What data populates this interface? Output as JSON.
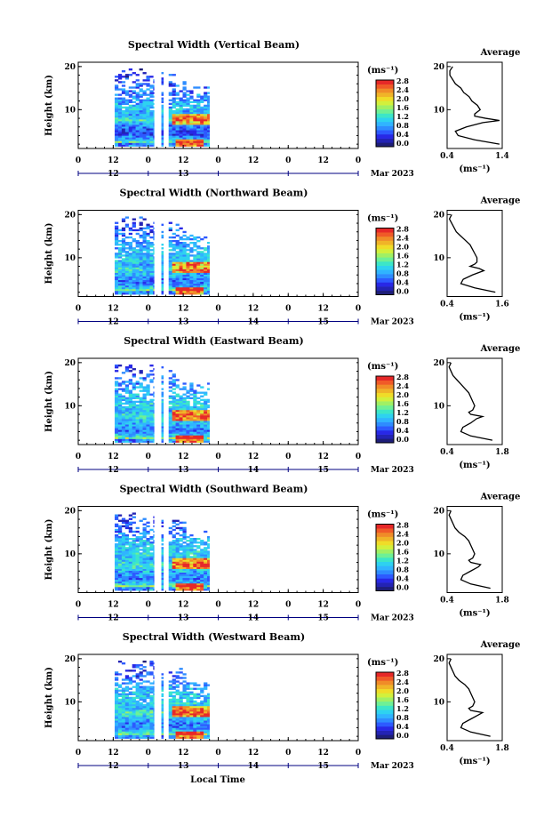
{
  "figure": {
    "x_axis_label": "Local Time",
    "date_label": "Mar 2023",
    "colorbar_unit": "(ms⁻¹)",
    "colorbar_ticks": [
      "0.0",
      "0.4",
      "0.8",
      "1.2",
      "1.6",
      "2.0",
      "2.4",
      "2.8"
    ],
    "colormap": [
      "#1e1e78",
      "#2323b4",
      "#2828e6",
      "#2d5aff",
      "#2e8cff",
      "#30b4ff",
      "#2ed2f0",
      "#3ce6c8",
      "#6ef096",
      "#a0f064",
      "#d2f03c",
      "#f0dc28",
      "#f0b428",
      "#f08c28",
      "#f05a28",
      "#e62828"
    ],
    "time_ticks_top": [
      "0",
      "12",
      "0",
      "12",
      "0",
      "12",
      "0",
      "12",
      "0"
    ],
    "time_ticks_bottom": [
      "12",
      "13",
      "14",
      "15"
    ],
    "height_ticks": [
      "20",
      "10"
    ],
    "avg_title": "Average",
    "avg_unit": "(ms⁻¹)"
  },
  "panels": [
    {
      "title": "Spectral Width (Vertical Beam)",
      "ylabel": "Height (km)",
      "avg_xticks": [
        "0.4",
        "1.4"
      ],
      "avg_xlim": [
        0.4,
        1.4
      ],
      "bottom_labels": [
        "12",
        "13"
      ]
    },
    {
      "title": "Spectral Width (Northward Beam)",
      "ylabel": "Height (km)",
      "avg_xticks": [
        "0.4",
        "1.6"
      ],
      "avg_xlim": [
        0.4,
        1.6
      ],
      "bottom_labels": [
        "12",
        "13",
        "14",
        "15"
      ]
    },
    {
      "title": "Spectral Width (Eastward Beam)",
      "ylabel": "Height (km)",
      "avg_xticks": [
        "0.4",
        "1.8"
      ],
      "avg_xlim": [
        0.4,
        1.8
      ],
      "bottom_labels": [
        "12",
        "13",
        "14",
        "15"
      ]
    },
    {
      "title": "Spectral Width (Southward Beam)",
      "ylabel": "Height (km)",
      "avg_xticks": [
        "0.4",
        "1.8"
      ],
      "avg_xlim": [
        0.4,
        1.8
      ],
      "bottom_labels": [
        "12",
        "13",
        "14",
        "15"
      ]
    },
    {
      "title": "Spectral Width (Westward Beam)",
      "ylabel": "Height (km)",
      "avg_xticks": [
        "0.4",
        "1.8"
      ],
      "avg_xlim": [
        0.4,
        1.8
      ],
      "bottom_labels": [
        "12",
        "13",
        "14",
        "15"
      ]
    }
  ],
  "chart_data": {
    "type": "heatmap",
    "x_unit": "hours since 11 Mar 2023 00 LT",
    "xlim": [
      0,
      96
    ],
    "ylim": [
      1,
      21
    ],
    "colorbar_range": [
      0.0,
      3.0
    ],
    "data_windows_hours": [
      [
        12.5,
        26.0
      ],
      [
        28.5,
        29.2
      ],
      [
        31.0,
        45.0
      ]
    ],
    "average_profiles": [
      {
        "height_km": [
          2,
          3,
          4,
          5,
          6,
          7,
          7.5,
          8,
          8.5,
          9,
          10,
          11,
          12,
          13,
          14,
          15,
          16,
          17,
          18,
          19,
          20
        ],
        "width": [
          1.35,
          0.9,
          0.6,
          0.55,
          0.75,
          1.05,
          1.35,
          1.1,
          0.9,
          0.9,
          1.0,
          0.95,
          0.85,
          0.8,
          0.7,
          0.65,
          0.55,
          0.5,
          0.45,
          0.45,
          0.5
        ]
      },
      {
        "height_km": [
          2,
          3,
          4,
          5,
          6,
          7,
          7.5,
          8,
          8.5,
          9,
          10,
          11,
          12,
          13,
          14,
          15,
          16,
          17,
          18,
          19,
          20
        ],
        "width": [
          1.45,
          1.0,
          0.7,
          0.75,
          0.95,
          1.2,
          1.1,
          0.9,
          1.0,
          1.05,
          1.05,
          1.0,
          0.95,
          0.9,
          0.8,
          0.7,
          0.6,
          0.55,
          0.5,
          0.45,
          0.5
        ]
      },
      {
        "height_km": [
          2,
          3,
          4,
          5,
          6,
          7,
          7.5,
          8,
          8.5,
          9,
          10,
          11,
          12,
          13,
          14,
          15,
          16,
          17,
          18,
          19,
          20
        ],
        "width": [
          1.55,
          1.0,
          0.75,
          0.8,
          1.0,
          1.15,
          1.3,
          1.0,
          0.95,
          1.05,
          1.1,
          1.05,
          1.0,
          0.95,
          0.85,
          0.75,
          0.65,
          0.55,
          0.5,
          0.45,
          0.5
        ]
      },
      {
        "height_km": [
          2,
          3,
          4,
          5,
          6,
          7,
          7.5,
          8,
          8.5,
          9,
          10,
          11,
          12,
          13,
          14,
          15,
          16,
          17,
          18,
          19,
          20
        ],
        "width": [
          1.5,
          1.0,
          0.75,
          0.8,
          1.0,
          1.2,
          1.25,
          1.0,
          0.95,
          1.05,
          1.1,
          1.05,
          1.0,
          0.95,
          0.85,
          0.7,
          0.6,
          0.55,
          0.5,
          0.45,
          0.5
        ]
      },
      {
        "height_km": [
          2,
          3,
          4,
          5,
          6,
          7,
          7.5,
          8,
          8.5,
          9,
          10,
          11,
          12,
          13,
          14,
          15,
          16,
          17,
          18,
          19,
          20
        ],
        "width": [
          1.5,
          1.0,
          0.75,
          0.8,
          1.0,
          1.2,
          1.3,
          1.0,
          0.95,
          1.05,
          1.1,
          1.05,
          1.0,
          0.95,
          0.85,
          0.7,
          0.6,
          0.55,
          0.5,
          0.45,
          0.5
        ]
      }
    ]
  }
}
